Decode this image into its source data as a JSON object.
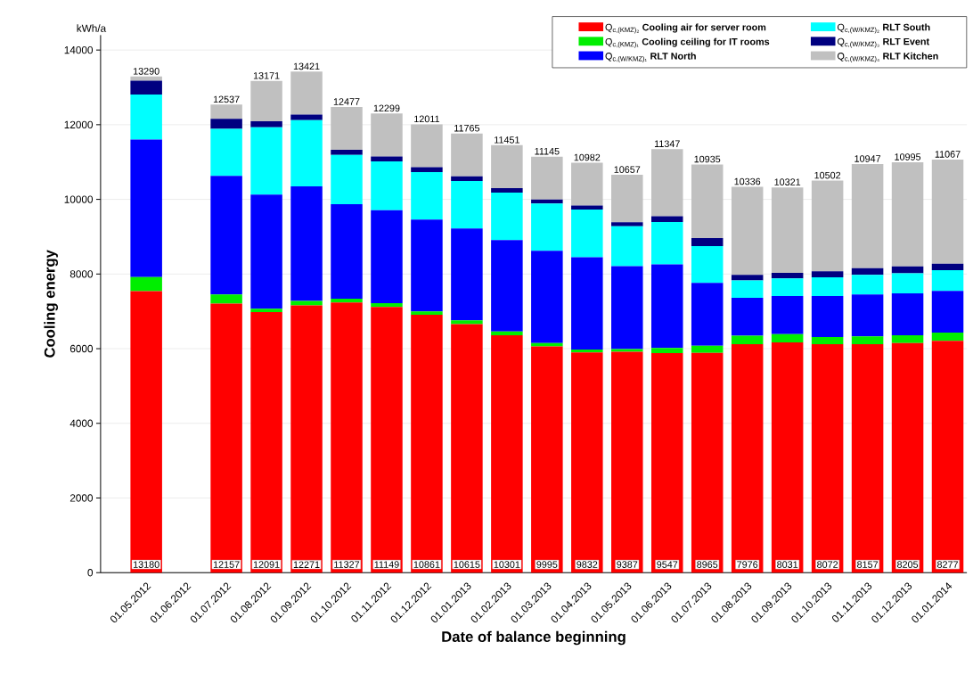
{
  "chart_data": {
    "type": "bar",
    "stacked": true,
    "xlabel": "Date of balance beginning",
    "ylabel": "Cooling energy",
    "categories": [
      "01.05.2012",
      "01.06.2012",
      "01.07.2012",
      "01.08.2012",
      "01.09.2012",
      "01.10.2012",
      "01.11.2012",
      "01.12.2012",
      "01.01.2013",
      "01.02.2013",
      "01.03.2013",
      "01.04.2013",
      "01.05.2013",
      "01.06.2013",
      "01.07.2013",
      "01.08.2013",
      "01.09.2013",
      "01.10.2013",
      "01.11.2013",
      "01.12.2013",
      "01.01.2014"
    ],
    "series": [
      {
        "name": "Q$_{c,(KMZ)₂}$   **Cooling air for server room**",
        "color": "#ff0000",
        "values": [
          7540,
          null,
          7210,
          6980,
          7160,
          7240,
          7120,
          6910,
          6660,
          6360,
          6060,
          5900,
          5920,
          5880,
          5890,
          6120,
          6170,
          6120,
          6120,
          6150,
          6210
        ]
      },
      {
        "name": "Q$_{c,(KMZ)₁}$   **Cooling ceiling for IT rooms**",
        "color": "#00ee00",
        "values": [
          380,
          null,
          240,
          90,
          120,
          100,
          100,
          90,
          100,
          100,
          90,
          80,
          70,
          140,
          190,
          230,
          220,
          190,
          210,
          210,
          220
        ]
      },
      {
        "name": "Q$_{c,(W/KMZ)₁}$   **RLT North**",
        "color": "#0000ff",
        "values": [
          3680,
          null,
          3180,
          3060,
          3070,
          2530,
          2490,
          2460,
          2460,
          2450,
          2470,
          2470,
          2220,
          2240,
          1680,
          1010,
          1020,
          1100,
          1120,
          1120,
          1120
        ]
      },
      {
        "name": "Q$_{c,(W/KMZ)₂}$   **RLT South**",
        "color": "#00ffff",
        "values": [
          1210,
          null,
          1260,
          1800,
          1770,
          1320,
          1310,
          1270,
          1270,
          1270,
          1270,
          1280,
          1070,
          1130,
          990,
          470,
          470,
          500,
          530,
          540,
          550
        ]
      },
      {
        "name": "Q$_{c,(W/KMZ)₃}$   **RLT Event**",
        "color": "#000080",
        "values": [
          370,
          null,
          267,
          161,
          151,
          137,
          129,
          131,
          125,
          121,
          105,
          102,
          107,
          157,
          215,
          146,
          151,
          162,
          177,
          185,
          177
        ]
      },
      {
        "name": "Q$_{c,(W/KMZ)₄}$   **RLT Kitchen**",
        "color": "#c0c0c0",
        "values": [
          110,
          null,
          380,
          1080,
          1150,
          1150,
          1150,
          1150,
          1150,
          1150,
          1150,
          1150,
          1270,
          1800,
          1970,
          2360,
          2290,
          2430,
          2790,
          2790,
          2790
        ]
      }
    ],
    "totals": [
      "13290",
      null,
      "12537",
      "13171",
      "13421",
      "12477",
      "12299",
      "12011",
      "11765",
      "11451",
      "11145",
      "10982",
      "10657",
      "11347",
      "10935",
      "10336",
      "10321",
      "10502",
      "10947",
      "10995",
      "11067"
    ],
    "annotations": [
      "kWh/a",
      {
        "text": "13180",
        "x": "01.05.2012"
      },
      {
        "text": "12157",
        "x": "01.07.2012"
      },
      {
        "text": "12091",
        "x": "01.08.2012"
      },
      {
        "text": "12271",
        "x": "01.09.2012"
      },
      {
        "text": "11327",
        "x": "01.10.2012"
      },
      {
        "text": "11149",
        "x": "01.11.2012"
      },
      {
        "text": "10861",
        "x": "01.12.2012"
      },
      {
        "text": "10615",
        "x": "01.01.2013"
      },
      {
        "text": "10301",
        "x": "01.02.2013"
      },
      {
        "text": "9995",
        "x": "01.03.2013"
      },
      {
        "text": "9832",
        "x": "01.04.2013"
      },
      {
        "text": "9387",
        "x": "01.05.2013"
      },
      {
        "text": "9547",
        "x": "01.06.2013"
      },
      {
        "text": "8965",
        "x": "01.07.2013"
      },
      {
        "text": "7976",
        "x": "01.08.2013"
      },
      {
        "text": "8031",
        "x": "01.09.2013"
      },
      {
        "text": "8072",
        "x": "01.10.2013"
      },
      {
        "text": "8157",
        "x": "01.11.2013"
      },
      {
        "text": "8205",
        "x": "01.12.2013"
      },
      {
        "text": "8277",
        "x": "01.01.2014"
      }
    ],
    "ylim": [
      0,
      14400
    ],
    "yticks": [
      0,
      2000,
      4000,
      6000,
      8000,
      10000,
      12000,
      14000
    ],
    "grid": "y",
    "legend": "top right"
  }
}
